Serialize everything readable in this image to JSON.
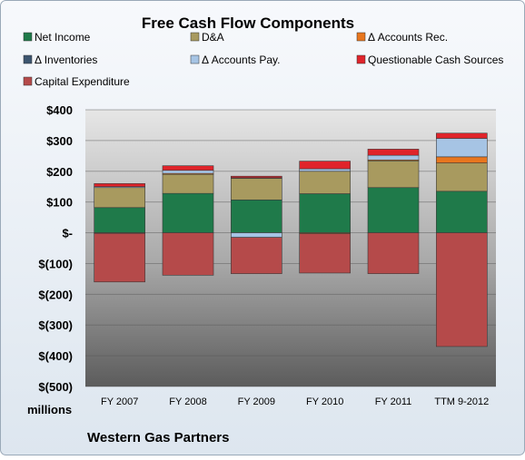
{
  "chart_data": {
    "type": "bar",
    "stacked": true,
    "title": "Free Cash Flow Components",
    "unit_label": "millions",
    "footer": "Western Gas Partners",
    "categories": [
      "FY 2007",
      "FY 2008",
      "FY 2009",
      "FY 2010",
      "FY 2011",
      "TTM 9-2012"
    ],
    "ylim": [
      -500,
      400
    ],
    "yticks": [
      400,
      300,
      200,
      100,
      0,
      -100,
      -200,
      -300,
      -400,
      -500
    ],
    "ytick_labels": [
      "$400",
      "$300",
      "$200",
      "$100",
      "$-",
      "$(100)",
      "$(200)",
      "$(300)",
      "$(400)",
      "$(500)"
    ],
    "grid": true,
    "legend_position": "top",
    "series": [
      {
        "name": "Net Income",
        "color": "#1f7a4a",
        "values": [
          82,
          128,
          107,
          127,
          147,
          135
        ]
      },
      {
        "name": "D&A",
        "color": "#a89a5f",
        "values": [
          65,
          62,
          70,
          73,
          87,
          92
        ]
      },
      {
        "name": "Δ Accounts Rec.",
        "color": "#e8761e",
        "values": [
          -2,
          3,
          2,
          -3,
          3,
          20
        ]
      },
      {
        "name": "Δ Inventories",
        "color": "#3c556f",
        "values": [
          0,
          0,
          0,
          0,
          0,
          0
        ]
      },
      {
        "name": "Δ Accounts Pay.",
        "color": "#a6c4e4",
        "values": [
          3,
          10,
          -15,
          8,
          15,
          60
        ]
      },
      {
        "name": "Questionable Cash Sources",
        "color": "#e0242b",
        "values": [
          10,
          15,
          5,
          25,
          20,
          17
        ]
      },
      {
        "name": "Capital Expenditure",
        "color": "#b54a4a",
        "values": [
          -158,
          -138,
          -118,
          -128,
          -133,
          -370
        ]
      }
    ]
  }
}
